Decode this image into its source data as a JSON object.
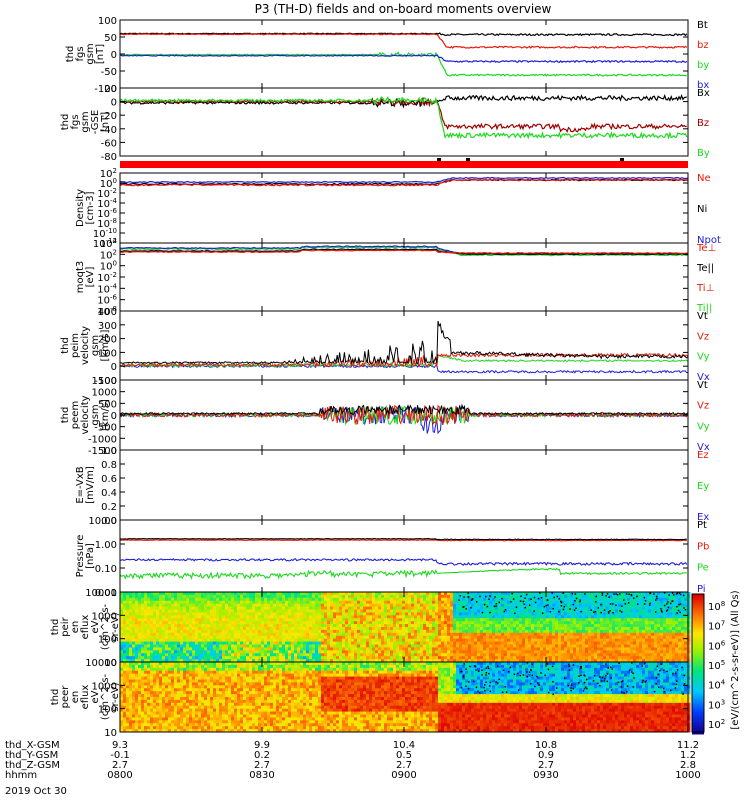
{
  "title": "P3 (TH-D) fields and on-board moments overview",
  "colors": {
    "black": "#000000",
    "red": "#e8170a",
    "darkred": "#a00000",
    "green": "#1ed81e",
    "blue": "#1e1edc",
    "bright_red": "#ff0000"
  },
  "colorbar": {
    "label": "[eV/(cm^2-s-sr-eV)] (All Qs)",
    "ticks": [
      "10^8",
      "10^7",
      "10^6",
      "10^5",
      "10^4",
      "10^3",
      "10^2"
    ]
  },
  "chart_data": [
    {
      "type": "line",
      "ylabel": [
        "thd",
        "fgs",
        "gsm",
        "[nT]"
      ],
      "ylim": [
        -100,
        100
      ],
      "yticks": [
        "100",
        "50",
        "0",
        "-50",
        "-100"
      ],
      "series": [
        {
          "name": "Bt",
          "color": "black",
          "values_before": 60,
          "values_after": 57
        },
        {
          "name": "bz",
          "color": "red",
          "values_before": 58,
          "values_after": 20
        },
        {
          "name": "by",
          "color": "green",
          "values_before": -2,
          "values_after": -62
        },
        {
          "name": "bx",
          "color": "blue",
          "values_before": -5,
          "values_after": -22
        }
      ]
    },
    {
      "type": "line",
      "ylabel": [
        "thd",
        "fgs",
        "gsm",
        "-GSE",
        "[nT]"
      ],
      "ylim": [
        -90,
        25
      ],
      "yticks": [
        "20",
        "0",
        "-20",
        "-40",
        "-60",
        "-80"
      ],
      "series": [
        {
          "name": "Bx",
          "color": "black",
          "values_before": 0,
          "values_after": 8
        },
        {
          "name": "Bz",
          "color": "darkred",
          "values_before": 2,
          "values_after": -40
        },
        {
          "name": "By",
          "color": "green",
          "values_before": 4,
          "values_after": -55
        }
      ]
    },
    {
      "type": "line",
      "ylabel": [
        "Density",
        "[cm-3]"
      ],
      "log": true,
      "yticks": [
        "10^2",
        "10^0",
        "10^-2",
        "10^-4",
        "10^-6",
        "10^-8",
        "10^-10",
        "10^-12"
      ],
      "series": [
        {
          "name": "Ne",
          "color": "red"
        },
        {
          "name": "Ni",
          "color": "black"
        },
        {
          "name": "Npot",
          "color": "blue"
        }
      ]
    },
    {
      "type": "line",
      "ylabel": [
        "moqt3",
        "[eV]"
      ],
      "log": true,
      "yticks": [
        "10^4",
        "10^2",
        "10^0",
        "10^-2",
        "10^-4",
        "10^-6",
        "10^-8"
      ],
      "series": [
        {
          "name": "Te⊥",
          "color": "red"
        },
        {
          "name": "Te||",
          "color": "black"
        },
        {
          "name": "Ti⊥",
          "color": "red"
        },
        {
          "name": "Ti||",
          "color": "green"
        }
      ]
    },
    {
      "type": "line",
      "ylabel": [
        "thd",
        "peim",
        "velocity",
        "gsm",
        "[km/s]"
      ],
      "ylim": [
        -100,
        400
      ],
      "yticks": [
        "400",
        "300",
        "200",
        "100",
        "0",
        "-100"
      ],
      "series": [
        {
          "name": "Vt",
          "color": "black"
        },
        {
          "name": "Vz",
          "color": "red"
        },
        {
          "name": "Vy",
          "color": "green"
        },
        {
          "name": "Vx",
          "color": "blue"
        }
      ]
    },
    {
      "type": "line",
      "ylabel": [
        "thd",
        "peem",
        "velocity",
        "gsm",
        "[km/s]"
      ],
      "ylim": [
        -1500,
        1500
      ],
      "yticks": [
        "1500",
        "1000",
        "500",
        "0",
        "-500",
        "-1000",
        "-1500"
      ],
      "series": [
        {
          "name": "Vt",
          "color": "black"
        },
        {
          "name": "Vz",
          "color": "red"
        },
        {
          "name": "Vy",
          "color": "green"
        },
        {
          "name": "Vx",
          "color": "blue"
        }
      ]
    },
    {
      "type": "line",
      "ylabel": [
        "E=-VxB",
        "[mV/m]"
      ],
      "ylim": [
        0,
        1
      ],
      "yticks": [
        "1.0",
        "0.8",
        "0.6",
        "0.4",
        "0.2",
        "0.0"
      ],
      "series": [
        {
          "name": "Ez",
          "color": "red"
        },
        {
          "name": "Ey",
          "color": "green"
        },
        {
          "name": "Ex",
          "color": "blue"
        }
      ]
    },
    {
      "type": "line",
      "ylabel": [
        "Pressure",
        "[nPa]"
      ],
      "log": true,
      "yticks": [
        "10.00",
        "1.00",
        "0.10",
        "0.01"
      ],
      "series": [
        {
          "name": "Pt",
          "color": "black"
        },
        {
          "name": "Pb",
          "color": "red"
        },
        {
          "name": "Pe",
          "color": "green"
        },
        {
          "name": "Pi",
          "color": "blue"
        }
      ]
    },
    {
      "type": "heatmap",
      "ylabel": [
        "thd",
        "peir",
        "en",
        "eflux",
        "eV",
        "(cm^2-s-",
        "sr-eV)"
      ],
      "yticks": [
        "10000",
        "1000",
        "100",
        "10"
      ]
    },
    {
      "type": "heatmap",
      "ylabel": [
        "thd",
        "peer",
        "en",
        "eflux",
        "eV",
        "(cm^2-s-",
        "sr-eV)"
      ],
      "yticks": [
        "10000",
        "1000",
        "100",
        "10"
      ]
    }
  ],
  "xaxis": {
    "rows": [
      {
        "label": "thd_X-GSM",
        "values": [
          "9.3",
          "9.9",
          "10.4",
          "10.8",
          "11.2"
        ]
      },
      {
        "label": "thd_Y-GSM",
        "values": [
          "-0.1",
          "0.2",
          "0.5",
          "0.9",
          "1.2"
        ]
      },
      {
        "label": "thd_Z-GSM",
        "values": [
          "2.7",
          "2.7",
          "2.7",
          "2.7",
          "2.8"
        ]
      },
      {
        "label": "hhmm",
        "values": [
          "0800",
          "0830",
          "0900",
          "0930",
          "1000"
        ]
      }
    ],
    "date": "2019 Oct 30"
  }
}
